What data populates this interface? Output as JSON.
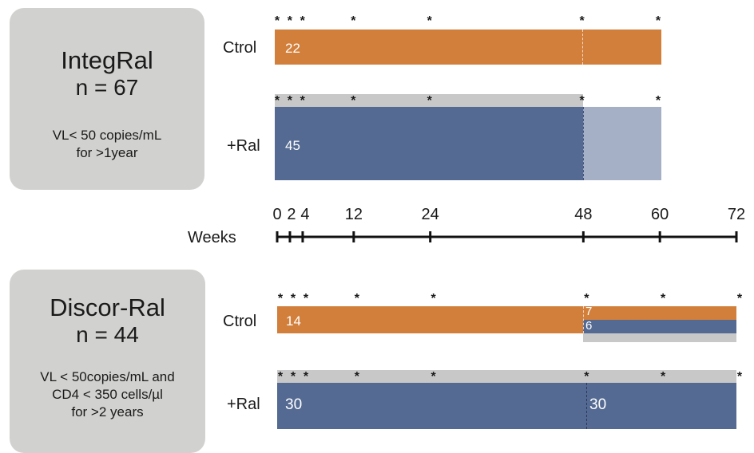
{
  "studies": [
    {
      "title": "IntegRal",
      "n": "n = 67",
      "desc": [
        "VL< 50 copies/mL",
        "for >1year"
      ],
      "arms": [
        {
          "label": "Ctrol",
          "count": "22"
        },
        {
          "label": "+Ral",
          "count": "45"
        }
      ]
    },
    {
      "title": "Discor-Ral",
      "n": "n = 44",
      "desc": [
        "VL < 50copies/mL and",
        "CD4 < 350 cells/µl",
        "for >2 years"
      ],
      "arms": [
        {
          "label": "Ctrol",
          "count": "14",
          "split_top": "7",
          "split_bottom": "6"
        },
        {
          "label": "+Ral",
          "count": "30",
          "count_after": "30"
        }
      ]
    }
  ],
  "axis": {
    "title": "Weeks",
    "weeks": [
      0,
      2,
      4,
      12,
      24,
      48,
      60,
      72
    ],
    "tick_labels": [
      "0",
      "2",
      "4",
      "12",
      "24",
      "48",
      "60",
      "72"
    ]
  },
  "visit_marker": "*",
  "visits": {
    "integral": [
      0,
      2,
      4,
      12,
      24,
      48,
      60
    ],
    "discor": [
      0,
      2,
      4,
      12,
      24,
      48,
      60,
      72
    ]
  },
  "colors": {
    "control": "#d27f3b",
    "ral": "#546a92",
    "ral_light": "#a5b0c6",
    "grey": "#c8c8c8",
    "box": "#d1d1cf"
  }
}
